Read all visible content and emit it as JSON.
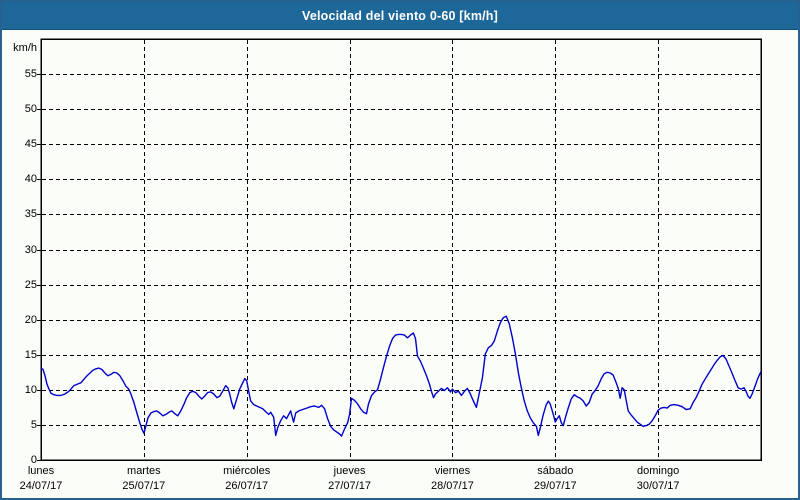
{
  "window": {
    "title": "Velocidad del viento 0-60 [km/h]"
  },
  "colors": {
    "title_bar": "#1e6899",
    "title_text": "#ffffff",
    "frame_border": "#27618f",
    "background": "#fbfdf8",
    "grid": "#000000",
    "line": "#0000cc"
  },
  "chart_data": {
    "type": "line",
    "title": "Velocidad del viento 0-60 [km/h]",
    "ylabel": "km/h",
    "ylim": [
      0,
      60
    ],
    "y_ticks": [
      0,
      5,
      10,
      15,
      20,
      25,
      30,
      35,
      40,
      45,
      50,
      55
    ],
    "grid": true,
    "legend": "none",
    "x_units": "days (0 = lunes 24/07/17 00:00, 7 = end of domingo 30/07/17)",
    "x_categories": [
      {
        "day": "lunes",
        "date": "24/07/17"
      },
      {
        "day": "martes",
        "date": "25/07/17"
      },
      {
        "day": "miércoles",
        "date": "26/07/17"
      },
      {
        "day": "jueves",
        "date": "27/07/17"
      },
      {
        "day": "viernes",
        "date": "28/07/17"
      },
      {
        "day": "sábado",
        "date": "29/07/17"
      },
      {
        "day": "domingo",
        "date": "30/07/17"
      }
    ],
    "series": [
      {
        "name": "velocidad del viento (km/h)",
        "color": "#0000cc",
        "points": [
          [
            0,
            13.1
          ],
          [
            0.019,
            12.9
          ],
          [
            0.039,
            12
          ],
          [
            0.058,
            10.8
          ],
          [
            0.078,
            10.1
          ],
          [
            0.097,
            9.5
          ],
          [
            0.126,
            9.3
          ],
          [
            0.155,
            9.2
          ],
          [
            0.194,
            9.2
          ],
          [
            0.233,
            9.4
          ],
          [
            0.272,
            9.8
          ],
          [
            0.291,
            10.1
          ],
          [
            0.32,
            10.6
          ],
          [
            0.369,
            10.9
          ],
          [
            0.388,
            11
          ],
          [
            0.417,
            11.5
          ],
          [
            0.447,
            12
          ],
          [
            0.476,
            12.4
          ],
          [
            0.505,
            12.8
          ],
          [
            0.534,
            13
          ],
          [
            0.563,
            13.1
          ],
          [
            0.592,
            12.9
          ],
          [
            0.621,
            12.4
          ],
          [
            0.65,
            12
          ],
          [
            0.68,
            12.2
          ],
          [
            0.709,
            12.5
          ],
          [
            0.738,
            12.4
          ],
          [
            0.767,
            12
          ],
          [
            0.796,
            11.3
          ],
          [
            0.825,
            10.5
          ],
          [
            0.854,
            10.1
          ],
          [
            0.874,
            9.4
          ],
          [
            0.903,
            8.2
          ],
          [
            0.932,
            6.7
          ],
          [
            0.961,
            5.3
          ],
          [
            0.981,
            4.4
          ],
          [
            1,
            3.8
          ],
          [
            1.019,
            4.8
          ],
          [
            1.039,
            6
          ],
          [
            1.068,
            6.7
          ],
          [
            1.097,
            6.9
          ],
          [
            1.126,
            7
          ],
          [
            1.155,
            6.7
          ],
          [
            1.184,
            6.3
          ],
          [
            1.214,
            6.5
          ],
          [
            1.243,
            6.8
          ],
          [
            1.272,
            7
          ],
          [
            1.301,
            6.6
          ],
          [
            1.33,
            6.3
          ],
          [
            1.359,
            7
          ],
          [
            1.388,
            7.9
          ],
          [
            1.417,
            8.9
          ],
          [
            1.447,
            9.6
          ],
          [
            1.476,
            9.8
          ],
          [
            1.505,
            9.6
          ],
          [
            1.534,
            9.1
          ],
          [
            1.563,
            8.7
          ],
          [
            1.592,
            9.1
          ],
          [
            1.621,
            9.6
          ],
          [
            1.65,
            9.7
          ],
          [
            1.68,
            9.4
          ],
          [
            1.709,
            8.9
          ],
          [
            1.738,
            9.1
          ],
          [
            1.767,
            9.8
          ],
          [
            1.796,
            10.6
          ],
          [
            1.816,
            10.3
          ],
          [
            1.835,
            9.4
          ],
          [
            1.854,
            8.2
          ],
          [
            1.874,
            7.3
          ],
          [
            1.903,
            8.7
          ],
          [
            1.932,
            10.1
          ],
          [
            1.961,
            11
          ],
          [
            1.981,
            11.6
          ],
          [
            2,
            11.3
          ],
          [
            2.019,
            9.8
          ],
          [
            2.039,
            8.4
          ],
          [
            2.068,
            7.9
          ],
          [
            2.097,
            7.7
          ],
          [
            2.126,
            7.5
          ],
          [
            2.155,
            7.3
          ],
          [
            2.184,
            6.9
          ],
          [
            2.214,
            6.5
          ],
          [
            2.233,
            6.8
          ],
          [
            2.262,
            6.1
          ],
          [
            2.282,
            3.5
          ],
          [
            2.301,
            4.6
          ],
          [
            2.33,
            5.6
          ],
          [
            2.359,
            6.3
          ],
          [
            2.388,
            5.9
          ],
          [
            2.427,
            7
          ],
          [
            2.456,
            5.4
          ],
          [
            2.476,
            6.7
          ],
          [
            2.505,
            7
          ],
          [
            2.544,
            7.2
          ],
          [
            2.583,
            7.4
          ],
          [
            2.621,
            7.6
          ],
          [
            2.66,
            7.7
          ],
          [
            2.699,
            7.5
          ],
          [
            2.728,
            7.8
          ],
          [
            2.757,
            7.3
          ],
          [
            2.786,
            5.9
          ],
          [
            2.816,
            4.8
          ],
          [
            2.845,
            4.3
          ],
          [
            2.874,
            4
          ],
          [
            2.903,
            3.7
          ],
          [
            2.922,
            3.4
          ],
          [
            2.951,
            4.4
          ],
          [
            2.981,
            5.3
          ],
          [
            3,
            6.5
          ],
          [
            3.019,
            8.8
          ],
          [
            3.049,
            8.5
          ],
          [
            3.078,
            8
          ],
          [
            3.107,
            7.3
          ],
          [
            3.136,
            6.8
          ],
          [
            3.165,
            6.6
          ],
          [
            3.184,
            8
          ],
          [
            3.214,
            9.2
          ],
          [
            3.243,
            9.7
          ],
          [
            3.272,
            10
          ],
          [
            3.301,
            11.5
          ],
          [
            3.33,
            13.2
          ],
          [
            3.359,
            14.8
          ],
          [
            3.388,
            16.2
          ],
          [
            3.417,
            17.3
          ],
          [
            3.447,
            17.8
          ],
          [
            3.476,
            17.9
          ],
          [
            3.505,
            17.9
          ],
          [
            3.534,
            17.8
          ],
          [
            3.563,
            17.4
          ],
          [
            3.592,
            17.8
          ],
          [
            3.621,
            18.1
          ],
          [
            3.641,
            17.3
          ],
          [
            3.66,
            14.8
          ],
          [
            3.689,
            14.1
          ],
          [
            3.718,
            13.1
          ],
          [
            3.748,
            12
          ],
          [
            3.777,
            10.8
          ],
          [
            3.796,
            9.8
          ],
          [
            3.816,
            8.9
          ],
          [
            3.835,
            9.4
          ],
          [
            3.864,
            9.8
          ],
          [
            3.893,
            10.2
          ],
          [
            3.922,
            9.9
          ],
          [
            3.951,
            10.3
          ],
          [
            3.981,
            9.7
          ],
          [
            4,
            10.1
          ],
          [
            4.029,
            9.6
          ],
          [
            4.058,
            9.8
          ],
          [
            4.087,
            9.2
          ],
          [
            4.117,
            9.8
          ],
          [
            4.146,
            10.2
          ],
          [
            4.175,
            9.4
          ],
          [
            4.204,
            8.4
          ],
          [
            4.233,
            7.5
          ],
          [
            4.262,
            9.6
          ],
          [
            4.291,
            11.7
          ],
          [
            4.32,
            15.1
          ],
          [
            4.35,
            16
          ],
          [
            4.379,
            16.3
          ],
          [
            4.408,
            17
          ],
          [
            4.437,
            18.4
          ],
          [
            4.466,
            19.6
          ],
          [
            4.495,
            20.3
          ],
          [
            4.524,
            20.5
          ],
          [
            4.553,
            19.4
          ],
          [
            4.583,
            17.4
          ],
          [
            4.612,
            15.1
          ],
          [
            4.641,
            12.4
          ],
          [
            4.67,
            10.3
          ],
          [
            4.699,
            8.4
          ],
          [
            4.728,
            7
          ],
          [
            4.757,
            6
          ],
          [
            4.786,
            5.3
          ],
          [
            4.816,
            4.8
          ],
          [
            4.835,
            3.5
          ],
          [
            4.854,
            4.6
          ],
          [
            4.883,
            6.5
          ],
          [
            4.913,
            7.9
          ],
          [
            4.932,
            8.4
          ],
          [
            4.951,
            8
          ],
          [
            4.981,
            6.5
          ],
          [
            5,
            5.4
          ],
          [
            5.019,
            5.9
          ],
          [
            5.039,
            6.3
          ],
          [
            5.058,
            5.3
          ],
          [
            5.078,
            4.9
          ],
          [
            5.097,
            6
          ],
          [
            5.126,
            7.4
          ],
          [
            5.155,
            8.7
          ],
          [
            5.184,
            9.3
          ],
          [
            5.214,
            9
          ],
          [
            5.243,
            8.8
          ],
          [
            5.272,
            8.4
          ],
          [
            5.301,
            7.7
          ],
          [
            5.33,
            8.2
          ],
          [
            5.359,
            9.4
          ],
          [
            5.388,
            9.9
          ],
          [
            5.417,
            10.6
          ],
          [
            5.447,
            11.6
          ],
          [
            5.476,
            12.3
          ],
          [
            5.505,
            12.5
          ],
          [
            5.534,
            12.4
          ],
          [
            5.563,
            12.1
          ],
          [
            5.592,
            11
          ],
          [
            5.612,
            10.2
          ],
          [
            5.631,
            8.8
          ],
          [
            5.65,
            10.3
          ],
          [
            5.67,
            10
          ],
          [
            5.689,
            8.5
          ],
          [
            5.709,
            7
          ],
          [
            5.738,
            6.4
          ],
          [
            5.767,
            5.9
          ],
          [
            5.796,
            5.4
          ],
          [
            5.825,
            5.1
          ],
          [
            5.854,
            4.8
          ],
          [
            5.883,
            4.9
          ],
          [
            5.913,
            5.1
          ],
          [
            5.942,
            5.6
          ],
          [
            5.971,
            6.3
          ],
          [
            6,
            7.1
          ],
          [
            6.029,
            7.4
          ],
          [
            6.058,
            7.5
          ],
          [
            6.087,
            7.4
          ],
          [
            6.117,
            7.8
          ],
          [
            6.155,
            7.9
          ],
          [
            6.194,
            7.8
          ],
          [
            6.233,
            7.6
          ],
          [
            6.272,
            7.2
          ],
          [
            6.311,
            7.3
          ],
          [
            6.34,
            8.2
          ],
          [
            6.369,
            8.9
          ],
          [
            6.398,
            9.8
          ],
          [
            6.427,
            10.8
          ],
          [
            6.456,
            11.5
          ],
          [
            6.485,
            12.2
          ],
          [
            6.515,
            12.9
          ],
          [
            6.544,
            13.6
          ],
          [
            6.573,
            14.2
          ],
          [
            6.602,
            14.7
          ],
          [
            6.631,
            14.9
          ],
          [
            6.66,
            14.4
          ],
          [
            6.689,
            13.4
          ],
          [
            6.718,
            12.4
          ],
          [
            6.748,
            11.3
          ],
          [
            6.777,
            10.3
          ],
          [
            6.806,
            10.1
          ],
          [
            6.835,
            10.3
          ],
          [
            6.854,
            9.8
          ],
          [
            6.874,
            9.1
          ],
          [
            6.893,
            8.8
          ],
          [
            6.913,
            9.4
          ],
          [
            6.942,
            10.5
          ],
          [
            6.971,
            11.7
          ],
          [
            7,
            12.6
          ]
        ]
      }
    ]
  }
}
